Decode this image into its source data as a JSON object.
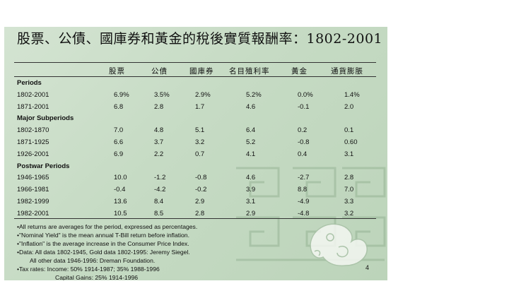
{
  "title": "股票、公債、國庫券和黃金的稅後實質報酬率：1802-2001",
  "columns": [
    "股票",
    "公債",
    "國庫券",
    "名目殖利率",
    "黃金",
    "通貨膨脹"
  ],
  "sections": [
    {
      "label": "Periods",
      "rows": [
        {
          "period": "1802-2001",
          "values": [
            "6.9%",
            "3.5%",
            "2.9%",
            "5.2%",
            "0.0%",
            "1.4%"
          ]
        },
        {
          "period": "1871-2001",
          "values": [
            "6.8",
            "2.8",
            "1.7",
            "4.6",
            "-0.1",
            "2.0"
          ]
        }
      ]
    },
    {
      "label": "Major Subperiods",
      "rows": [
        {
          "period": "1802-1870",
          "values": [
            "7.0",
            "4.8",
            "5.1",
            "6.4",
            "0.2",
            "0.1"
          ]
        },
        {
          "period": "1871-1925",
          "values": [
            "6.6",
            "3.7",
            "3.2",
            "5.2",
            "-0.8",
            "0.60"
          ]
        },
        {
          "period": "1926-2001",
          "values": [
            "6.9",
            "2.2",
            "0.7",
            "4.1",
            "0.4",
            "3.1"
          ]
        }
      ]
    },
    {
      "label": "Postwar Periods",
      "rows": [
        {
          "period": "1946-1965",
          "values": [
            "10.0",
            "-1.2",
            "-0.8",
            "4.6",
            "-2.7",
            "2.8"
          ]
        },
        {
          "period": "1966-1981",
          "values": [
            "-0.4",
            "-4.2",
            "-0.2",
            "3.9",
            "8.8",
            "7.0"
          ]
        },
        {
          "period": "1982-1999",
          "values": [
            "13.6",
            "8.4",
            "2.9",
            "3.1",
            "-4.9",
            "3.3"
          ]
        },
        {
          "period": "1982-2001",
          "values": [
            "10.5",
            "8.5",
            "2.8",
            "2.9",
            "-4.8",
            "3.2"
          ]
        }
      ]
    }
  ],
  "notes": [
    "•All returns are averages for the period, expressed as percentages.",
    "•\"Nominal Yield\" is the mean annual T-Bill return before inflation.",
    "•\"Inflation\" is the average increase in the Consumer Price Index.",
    "•Data: All data 1802-1945, Gold data 1802-1995: Jeremy Siegel.",
    "All other data 1946-1996: Dreman Foundation.",
    "•Tax rates: Income: 50% 1914-1987; 35% 1988-1996",
    "Capital Gains: 25% 1914-1996"
  ],
  "page_number": "4",
  "colors": {
    "background": "#c6dbc4",
    "text": "#111111"
  }
}
